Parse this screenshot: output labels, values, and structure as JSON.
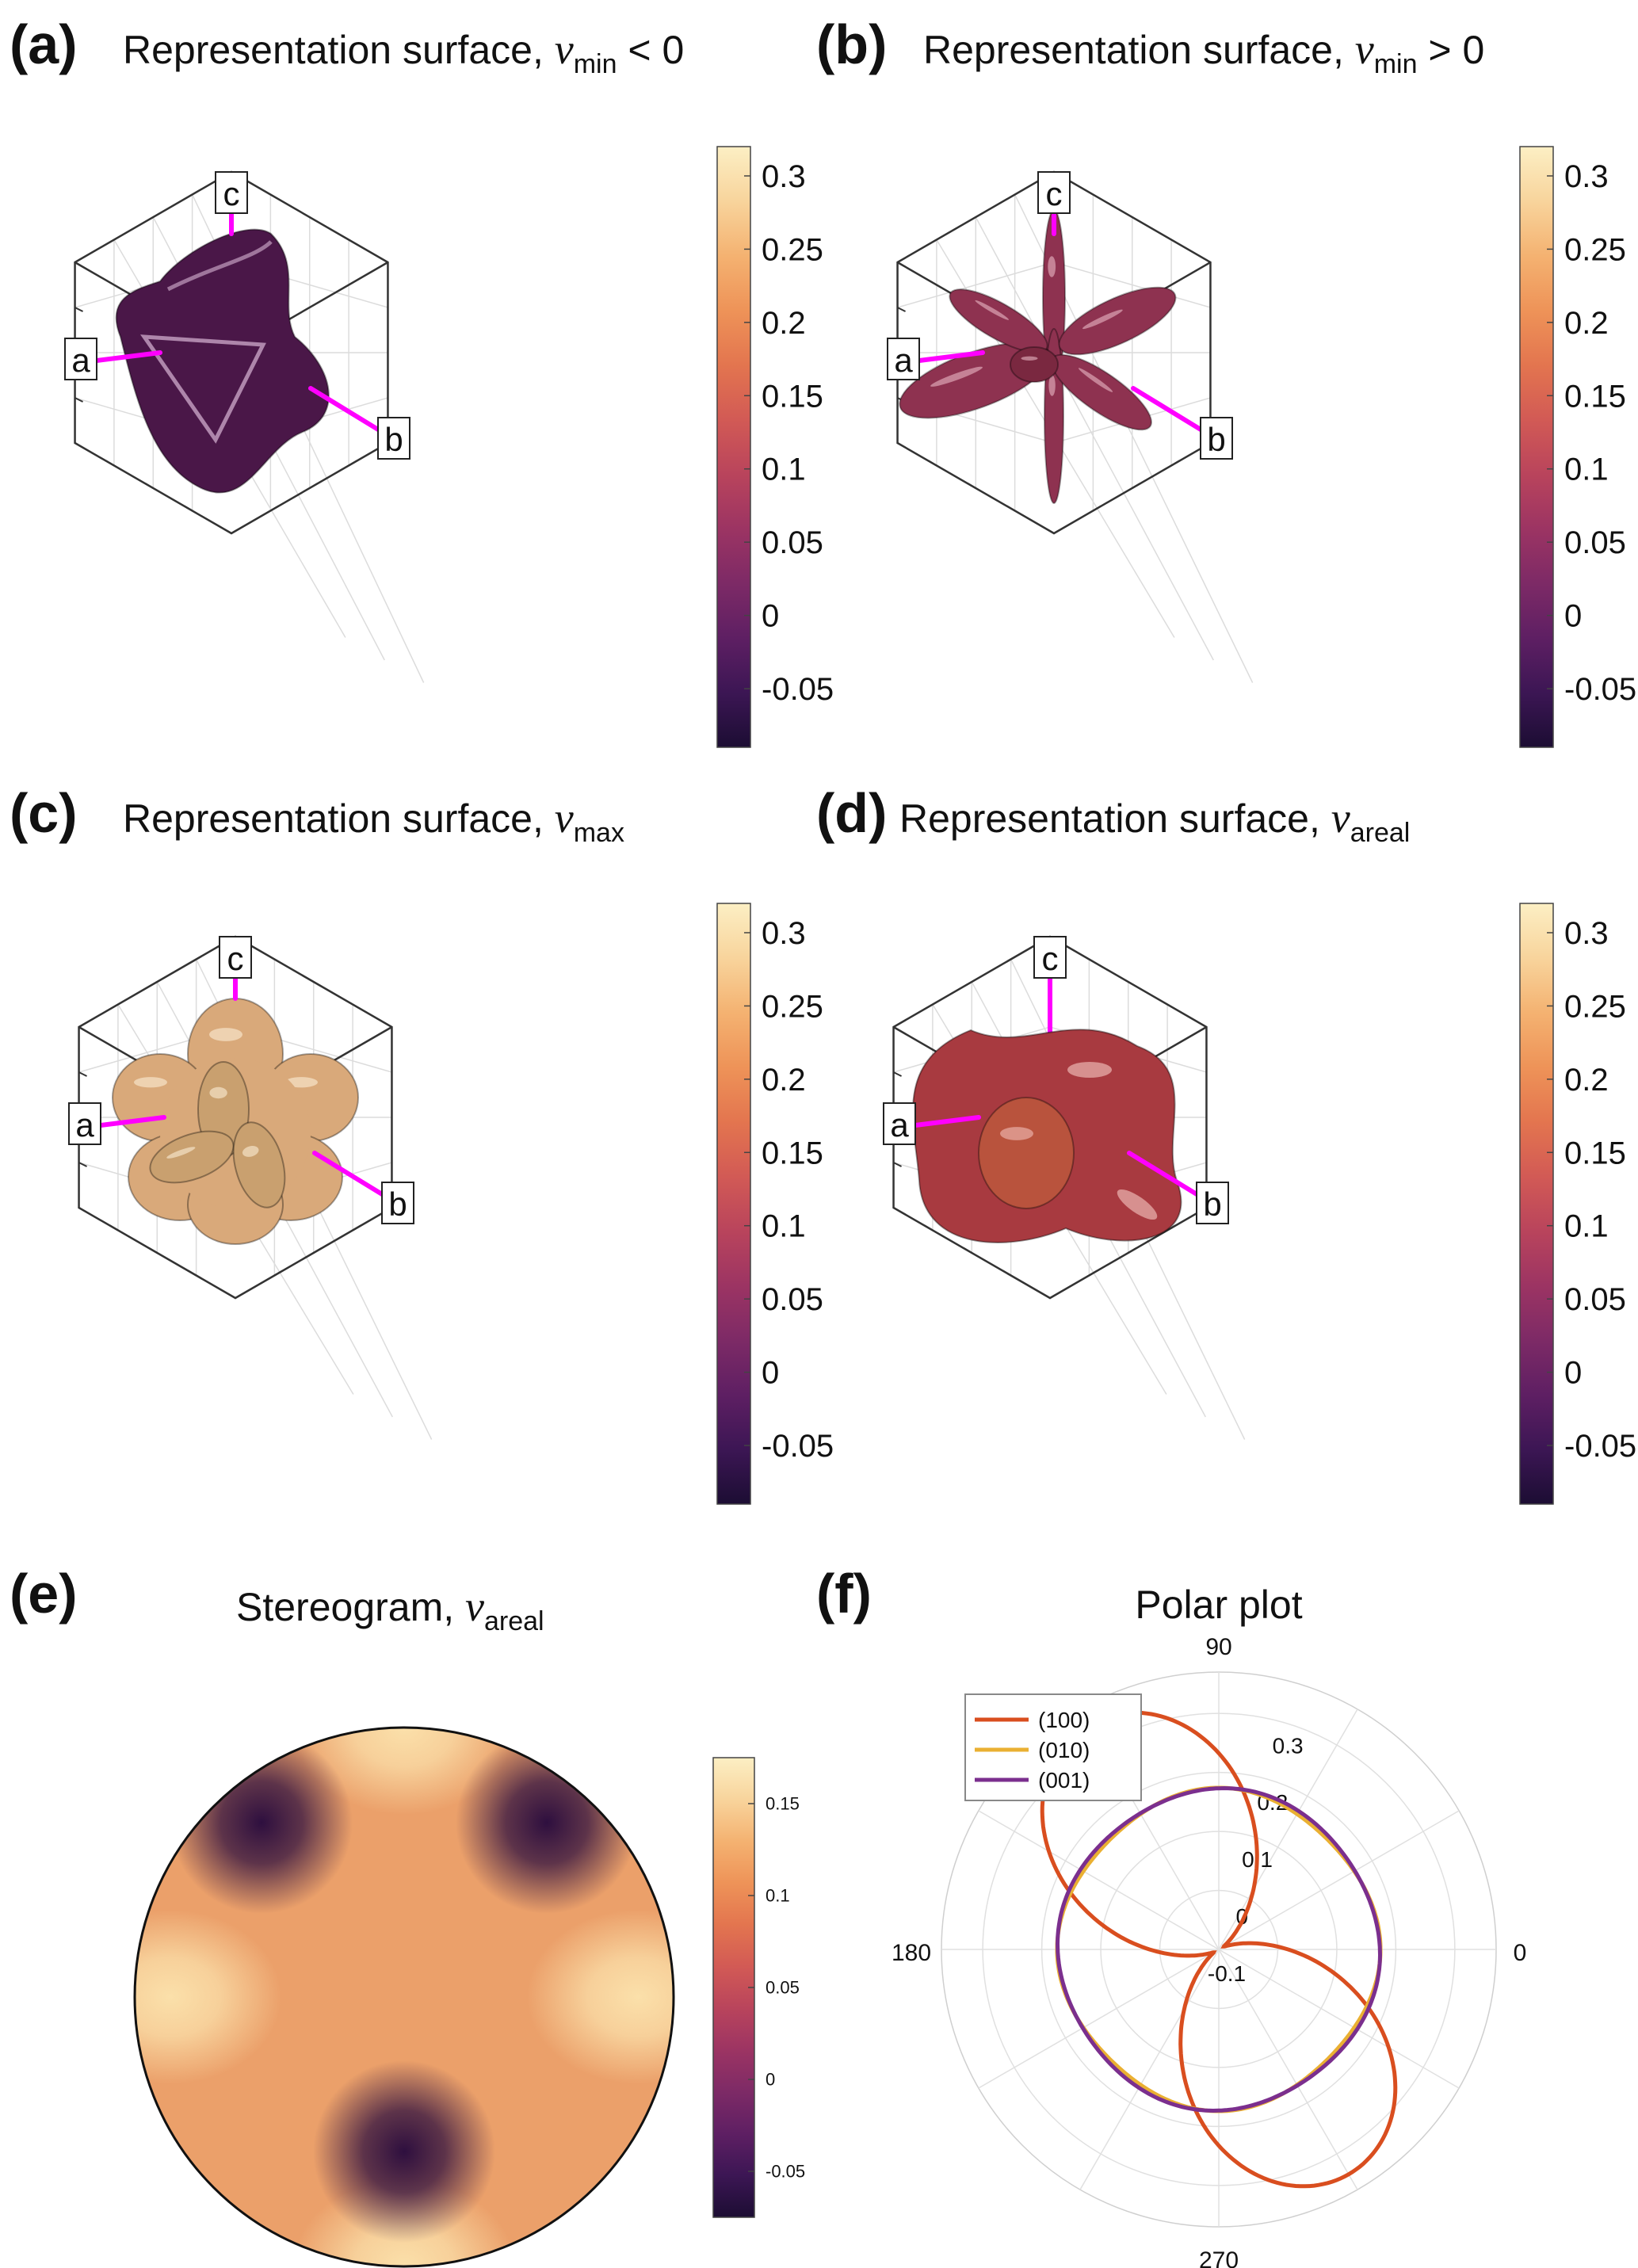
{
  "colormap": [
    "#1c0d33",
    "#3c1654",
    "#5e1f63",
    "#7d2a66",
    "#9c3463",
    "#b9445c",
    "#d25a55",
    "#e3754f",
    "#ee9358",
    "#f4b271",
    "#f8d49c",
    "#fcefc4"
  ],
  "panels": [
    {
      "id": "a",
      "letter": "(a)",
      "title_text": "Representation surface,",
      "title_symbol": "ν",
      "title_subscript": "min",
      "title_suffix": " < 0",
      "axis_labels": [
        "a",
        "b",
        "c"
      ],
      "surface_color": "#4a1748",
      "highlight_color": "#d8b6d6",
      "axis_color": "#ff00ff",
      "colorbar": {
        "ticks": [
          "0.3",
          "0.25",
          "0.2",
          "0.15",
          "0.1",
          "0.05",
          "0",
          "-0.05"
        ],
        "range": [
          -0.09,
          0.32
        ]
      }
    },
    {
      "id": "b",
      "letter": "(b)",
      "title_text": "Representation surface,",
      "title_symbol": "ν",
      "title_subscript": "min",
      "title_suffix": " > 0",
      "axis_labels": [
        "a",
        "b",
        "c"
      ],
      "surface_color": "#8e3250",
      "highlight_color": "#f2c4cf",
      "axis_color": "#ff00ff",
      "colorbar": {
        "ticks": [
          "0.3",
          "0.25",
          "0.2",
          "0.15",
          "0.1",
          "0.05",
          "0",
          "-0.05"
        ],
        "range": [
          -0.09,
          0.32
        ]
      }
    },
    {
      "id": "c",
      "letter": "(c)",
      "title_text": "Representation surface,",
      "title_symbol": "ν",
      "title_subscript": "max",
      "title_suffix": "",
      "axis_labels": [
        "a",
        "b",
        "c"
      ],
      "surface_color": "#d9a97a",
      "highlight_color": "#fff4de",
      "axis_color": "#ff00ff",
      "colorbar": {
        "ticks": [
          "0.3",
          "0.25",
          "0.2",
          "0.15",
          "0.1",
          "0.05",
          "0",
          "-0.05"
        ],
        "range": [
          -0.09,
          0.32
        ]
      }
    },
    {
      "id": "d",
      "letter": "(d)",
      "title_text": "Representation surface,",
      "title_symbol": "ν",
      "title_subscript": "areal",
      "title_suffix": "",
      "axis_labels": [
        "a",
        "b",
        "c"
      ],
      "surface_color": "#a83a40",
      "highlight_color": "#f7c9c4",
      "axis_color": "#ff00ff",
      "colorbar": {
        "ticks": [
          "0.3",
          "0.25",
          "0.2",
          "0.15",
          "0.1",
          "0.05",
          "0",
          "-0.05"
        ],
        "range": [
          -0.09,
          0.32
        ]
      }
    }
  ],
  "stereogram": {
    "letter": "(e)",
    "title_text": "Stereogram,",
    "title_symbol": "ν",
    "title_subscript": "areal",
    "background_color": "#eba06a",
    "bright_color": "#fbe0aa",
    "dark_color": "#2e0f3f",
    "colorbar": {
      "ticks": [
        "0.15",
        "0.1",
        "0.05",
        "0",
        "-0.05"
      ],
      "range": [
        -0.075,
        0.175
      ]
    }
  },
  "chart_data": {
    "type": "polar",
    "letter": "(f)",
    "title": "Polar plot",
    "angle_ticks": [
      "0",
      "90",
      "180",
      "270"
    ],
    "radial_ticks": [
      "-0.1",
      "0",
      "0.1",
      "0.2",
      "0.3"
    ],
    "rlim": [
      -0.1,
      0.37
    ],
    "legend_position": "top-left",
    "series": [
      {
        "name": "(100)",
        "color": "#d94e1f",
        "description": "two-lobed curve; lobe maxima ≈0.34 at ~120° and ~300°, minima ≈-0.09 at ~30° and ~210°"
      },
      {
        "name": "(010)",
        "color": "#eab032",
        "description": "nearly circular, ≈0.17"
      },
      {
        "name": "(001)",
        "color": "#7b2f8e",
        "description": "nearly circular, ≈0.17"
      }
    ]
  }
}
